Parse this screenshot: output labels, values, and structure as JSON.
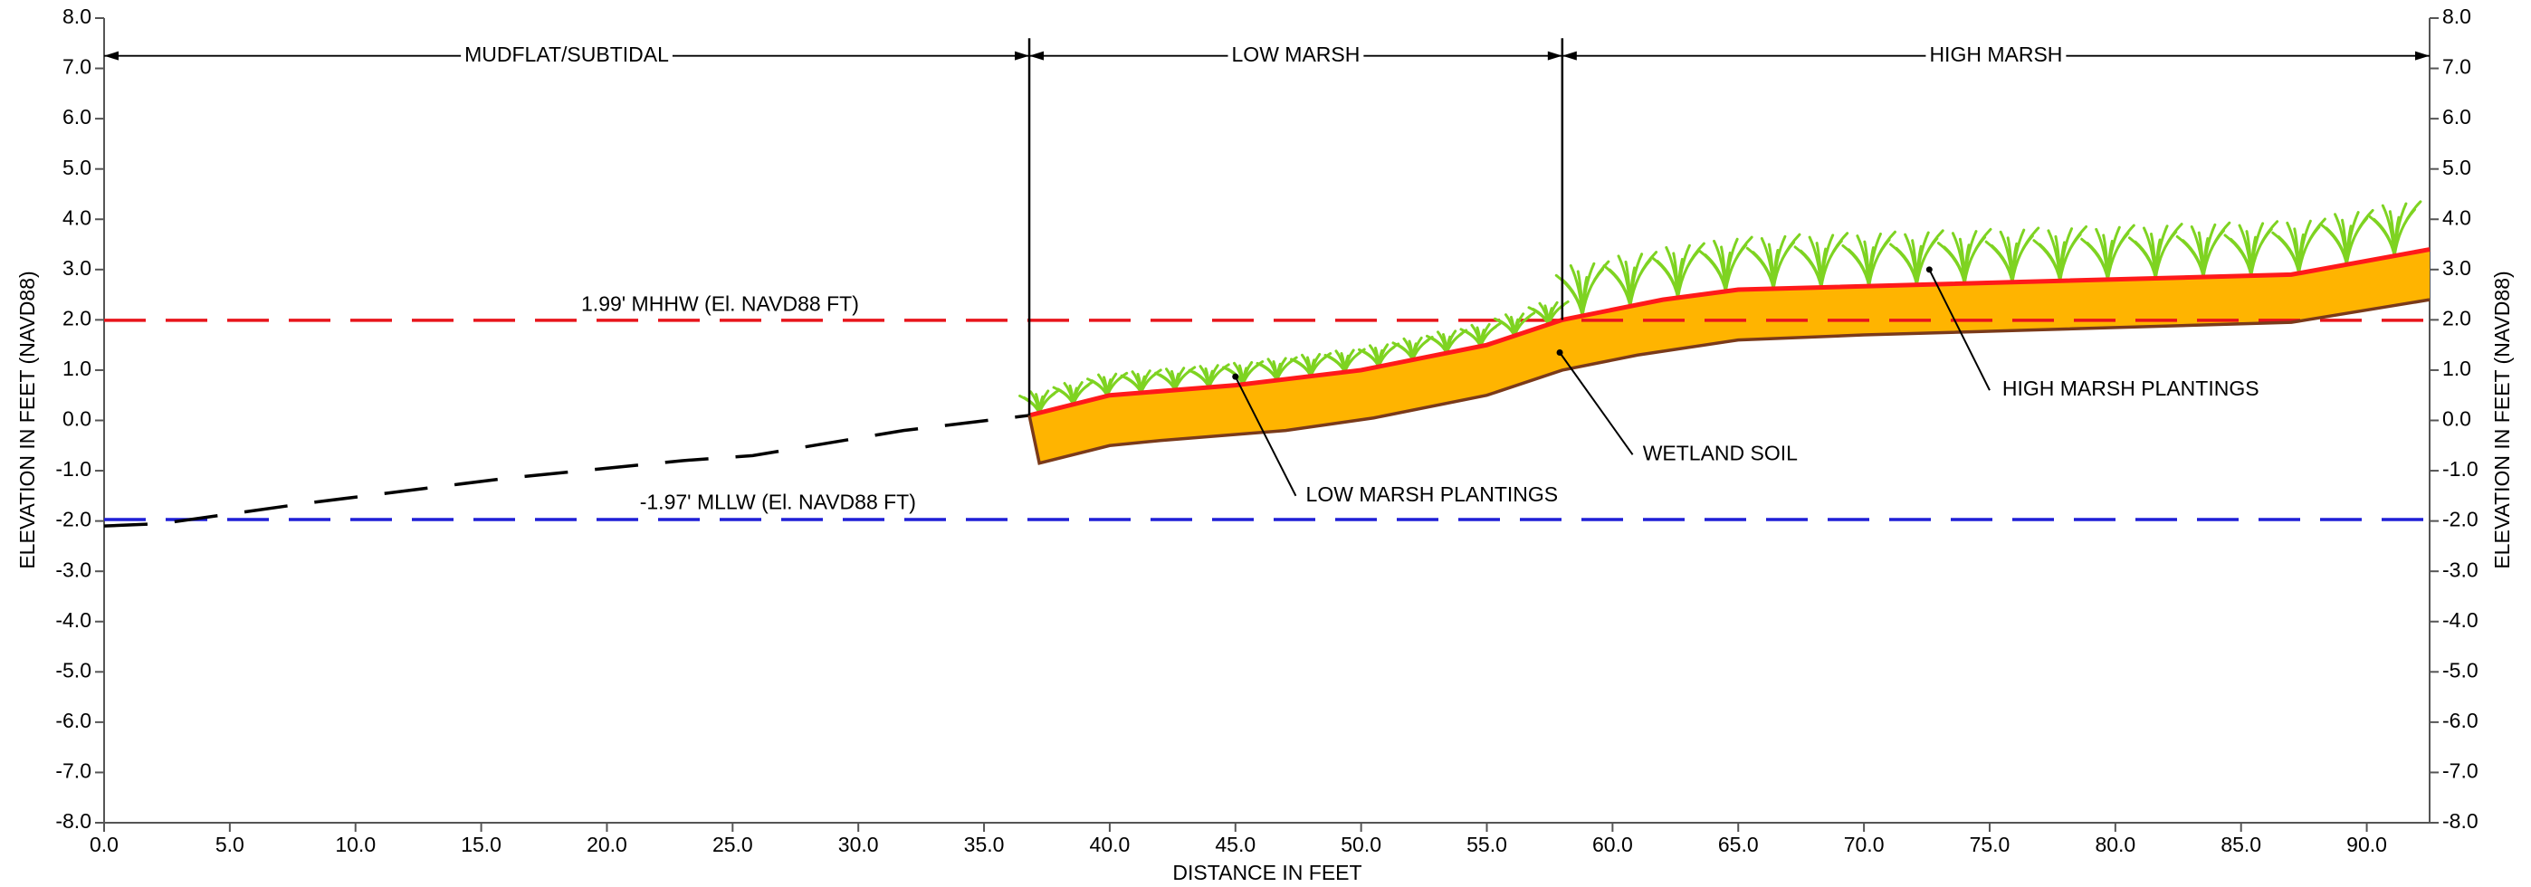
{
  "chart_data": {
    "type": "cross-section",
    "x_label": "DISTANCE IN FEET",
    "y_label": "ELEVATION IN FEET (NAVD88)",
    "y2_label": "ELEVATION IN FEET (NAVD88)",
    "xlim": [
      0,
      92.5
    ],
    "ylim": [
      -8,
      8
    ],
    "y2lim": [
      -8,
      8
    ],
    "xticks": [
      {
        "value": 0,
        "label": "0.0"
      },
      {
        "value": 5,
        "label": "5.0"
      },
      {
        "value": 10,
        "label": "10.0"
      },
      {
        "value": 15,
        "label": "15.0"
      },
      {
        "value": 20,
        "label": "20.0"
      },
      {
        "value": 25,
        "label": "25.0"
      },
      {
        "value": 30,
        "label": "30.0"
      },
      {
        "value": 35,
        "label": "35.0"
      },
      {
        "value": 40,
        "label": "40.0"
      },
      {
        "value": 45,
        "label": "45.0"
      },
      {
        "value": 50,
        "label": "50.0"
      },
      {
        "value": 55,
        "label": "55.0"
      },
      {
        "value": 60,
        "label": "60.0"
      },
      {
        "value": 65,
        "label": "65.0"
      },
      {
        "value": 70,
        "label": "70.0"
      },
      {
        "value": 75,
        "label": "75.0"
      },
      {
        "value": 80,
        "label": "80.0"
      },
      {
        "value": 85,
        "label": "85.0"
      },
      {
        "value": 90,
        "label": "90.0"
      }
    ],
    "yticks": [
      {
        "value": -8,
        "label": "-8.0"
      },
      {
        "value": -7,
        "label": "-7.0"
      },
      {
        "value": -6,
        "label": "-6.0"
      },
      {
        "value": -5,
        "label": "-5.0"
      },
      {
        "value": -4,
        "label": "-4.0"
      },
      {
        "value": -3,
        "label": "-3.0"
      },
      {
        "value": -2,
        "label": "-2.0"
      },
      {
        "value": -1,
        "label": "-1.0"
      },
      {
        "value": 0,
        "label": "0.0"
      },
      {
        "value": 1,
        "label": "1.0"
      },
      {
        "value": 2,
        "label": "2.0"
      },
      {
        "value": 3,
        "label": "3.0"
      },
      {
        "value": 4,
        "label": "4.0"
      },
      {
        "value": 5,
        "label": "5.0"
      },
      {
        "value": 6,
        "label": "6.0"
      },
      {
        "value": 7,
        "label": "7.0"
      },
      {
        "value": 8,
        "label": "8.0"
      }
    ],
    "y2ticks": [
      {
        "value": -8,
        "label": "-8.0"
      },
      {
        "value": -7,
        "label": "-7.0"
      },
      {
        "value": -6,
        "label": "-6.0"
      },
      {
        "value": -5,
        "label": "-5.0"
      },
      {
        "value": -4,
        "label": "-4.0"
      },
      {
        "value": -3,
        "label": "-3.0"
      },
      {
        "value": -2,
        "label": "-2.0"
      },
      {
        "value": -1,
        "label": "-1.0"
      },
      {
        "value": 0,
        "label": "0.0"
      },
      {
        "value": 1,
        "label": "1.0"
      },
      {
        "value": 2,
        "label": "2.0"
      },
      {
        "value": 3,
        "label": "3.0"
      },
      {
        "value": 4,
        "label": "4.0"
      },
      {
        "value": 5,
        "label": "5.0"
      },
      {
        "value": 6,
        "label": "6.0"
      },
      {
        "value": 7,
        "label": "7.0"
      },
      {
        "value": 8,
        "label": "8.0"
      }
    ],
    "series": [
      {
        "color": "#000000",
        "dashed": true,
        "x": [
          0,
          2.3,
          8,
          16,
          18,
          23,
          25.8,
          31.8,
          36.8
        ],
        "values": [
          -2.1,
          -2.05,
          -1.65,
          -1.15,
          -1.05,
          -0.8,
          -0.7,
          -0.2,
          0.1
        ]
      },
      {
        "color": "#ff1a1a",
        "dashed": false,
        "x": [
          36.8,
          40,
          45,
          50,
          55,
          58,
          62,
          65,
          87,
          92.5
        ],
        "values": [
          0.1,
          0.5,
          0.7,
          1.0,
          1.5,
          2.0,
          2.4,
          2.6,
          2.9,
          3.4
        ]
      },
      {
        "color": "#7a3a1a",
        "dashed": false,
        "x": [
          36.8,
          37.2,
          40,
          42,
          47,
          50.5,
          55,
          58,
          61,
          65,
          70,
          87,
          92.5
        ],
        "values": [
          0.1,
          -0.85,
          -0.5,
          -0.4,
          -0.2,
          0.05,
          0.5,
          1.0,
          1.3,
          1.6,
          1.7,
          1.95,
          2.4
        ]
      }
    ],
    "soil_color": "#ffb400",
    "plant_color": "#7ed321",
    "hlines": [
      {
        "value": 1.99,
        "label": "1.99' MHHW (El. NAVD88 FT)",
        "color": "#e8141b"
      },
      {
        "value": -1.97,
        "label": "-1.97' MLLW (El. NAVD88 FT)",
        "color": "#1f1fd6"
      }
    ],
    "zones": [
      {
        "label": "MUDFLAT/SUBTIDAL",
        "from": 0,
        "to": 36.8
      },
      {
        "label": "LOW MARSH",
        "from": 36.8,
        "to": 58
      },
      {
        "label": "HIGH MARSH",
        "from": 58,
        "to": 92.5
      }
    ],
    "callouts": [
      "LOW MARSH PLANTINGS",
      "WETLAND SOIL",
      "HIGH MARSH PLANTINGS"
    ]
  }
}
